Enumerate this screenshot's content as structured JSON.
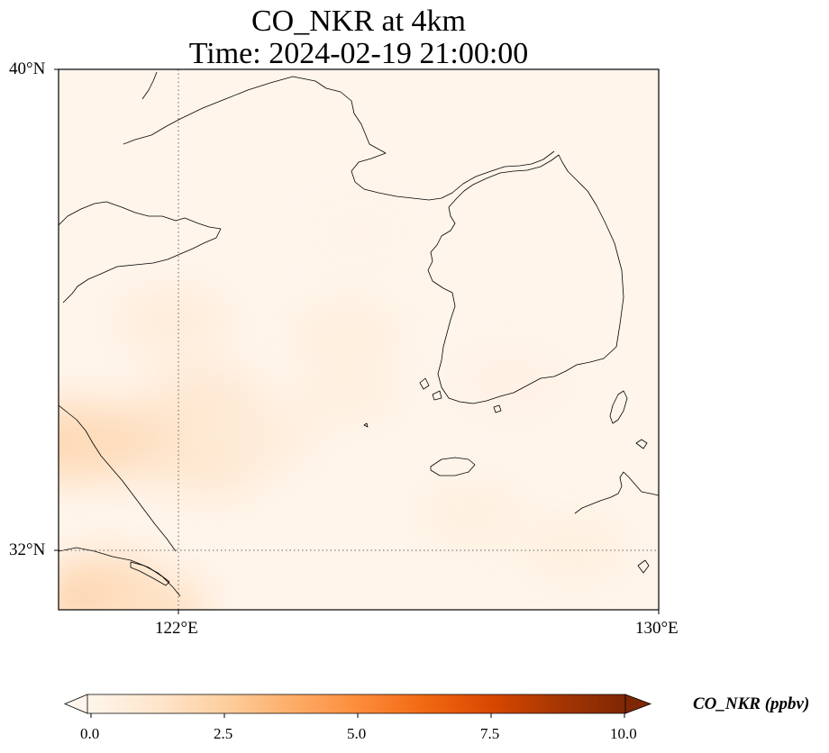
{
  "title": {
    "line1": "CO_NKR at 4km",
    "line2": "Time: 2024-02-19 21:00:00"
  },
  "axes": {
    "lat_labels": [
      "40°N",
      "32°N"
    ],
    "lon_labels": [
      "122°E",
      "130°E"
    ]
  },
  "colorbar": {
    "label": "CO_NKR (ppbv)",
    "ticks": [
      "0.0",
      "2.5",
      "5.0",
      "7.5",
      "10.0"
    ],
    "range": [
      0.0,
      10.0
    ],
    "extend": "both",
    "colormap": [
      "#fff5eb",
      "#fee6ce",
      "#fdd0a2",
      "#fdae6b",
      "#fd8d3c",
      "#f16913",
      "#d94801",
      "#a63603",
      "#7f2704"
    ]
  },
  "chart_data": {
    "type": "heatmap",
    "variable": "CO_NKR",
    "level": "4km",
    "time": "2024-02-19 21:00:00",
    "units": "ppbv",
    "lon_range": [
      120,
      130
    ],
    "lat_range": [
      31,
      40
    ],
    "gridlines": {
      "lon": [
        122
      ],
      "lat": [
        32
      ]
    },
    "blobs": [
      {
        "lon": 120.2,
        "lat": 33.8,
        "value": 2.2
      },
      {
        "lon": 121.0,
        "lat": 33.8,
        "value": 1.8
      },
      {
        "lon": 120.8,
        "lat": 31.2,
        "value": 2.4
      },
      {
        "lon": 121.5,
        "lat": 31.0,
        "value": 1.6
      },
      {
        "lon": 122.4,
        "lat": 34.5,
        "value": 1.2
      },
      {
        "lon": 122.5,
        "lat": 33.5,
        "value": 1.3
      },
      {
        "lon": 121.9,
        "lat": 35.8,
        "value": 0.8
      },
      {
        "lon": 123.3,
        "lat": 33.9,
        "value": 0.8
      },
      {
        "lon": 124.8,
        "lat": 35.6,
        "value": 0.6
      },
      {
        "lon": 124.8,
        "lat": 34.6,
        "value": 0.5
      },
      {
        "lon": 126.9,
        "lat": 32.6,
        "value": 0.5
      },
      {
        "lon": 128.6,
        "lat": 32.0,
        "value": 0.5
      },
      {
        "lon": 127.5,
        "lat": 34.8,
        "value": 0.4
      },
      {
        "lon": 125.0,
        "lat": 37.3,
        "value": 0.2
      }
    ]
  }
}
